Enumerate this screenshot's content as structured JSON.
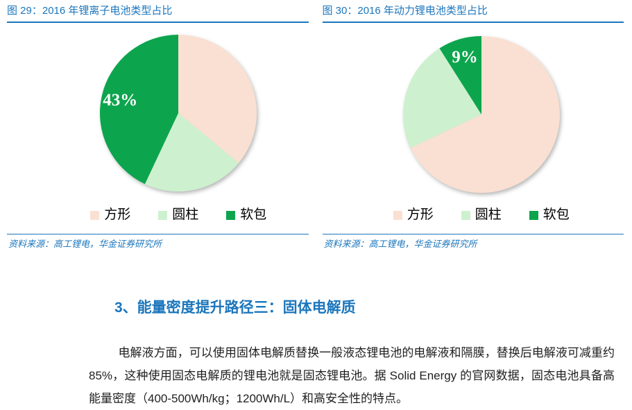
{
  "document": {
    "background": "#FFFFFF",
    "accent_blue": "#1B76BC",
    "pie_label_color": "#FFFFFF"
  },
  "figures": [
    {
      "title": "图 29：2016 年锂离子电池类型占比",
      "source": "资料来源：高工锂电，华金证券研究所"
    },
    {
      "title": "图 30：2016 年动力锂电池类型占比",
      "source": "资料来源：高工锂电，华金证券研究所"
    }
  ],
  "chart_data": [
    {
      "type": "pie",
      "title": "图 29：2016 年锂离子电池类型占比",
      "categories": [
        "方形",
        "圆柱",
        "软包"
      ],
      "values": [
        36,
        21,
        43
      ],
      "unit": "percent",
      "colors": [
        "#FAE0D2",
        "#CDF1CE",
        "#0CA54D"
      ],
      "data_labels": [
        "",
        "",
        "43%"
      ],
      "start_angle_deg": 0,
      "direction": "clockwise",
      "legend_position": "bottom",
      "label_radius_factor": 0.76
    },
    {
      "type": "pie",
      "title": "图 30：2016 年动力锂电池类型占比",
      "categories": [
        "方形",
        "圆柱",
        "软包"
      ],
      "values": [
        68,
        23,
        9
      ],
      "unit": "percent",
      "colors": [
        "#FAE0D2",
        "#CDF1CE",
        "#0CA54D"
      ],
      "data_labels": [
        "",
        "",
        "9%"
      ],
      "start_angle_deg": 0,
      "direction": "clockwise",
      "legend_position": "bottom",
      "label_radius_factor": 0.76
    }
  ],
  "section": {
    "heading": "3、能量密度提升路径三：固体电解质",
    "paragraph": "电解液方面，可以使用固体电解质替换一般液态锂电池的电解液和隔膜，替换后电解液可减重约 85%，这种使用固态电解质的锂电池就是固态锂电池。据 Solid Energy 的官网数据，固态电池具备高能量密度（400-500Wh/kg；1200Wh/L）和高安全性的特点。"
  }
}
